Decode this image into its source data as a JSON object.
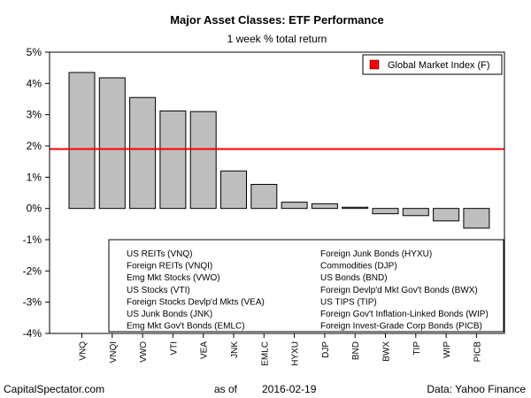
{
  "chart_data": {
    "type": "bar",
    "title": "Major Asset Classes: ETF Performance",
    "subtitle": "1 week % total return",
    "categories": [
      "VNQ",
      "VNQI",
      "VWO",
      "VTI",
      "VEA",
      "JNK",
      "EMLC",
      "HYXU",
      "DJP",
      "BND",
      "BWX",
      "TIP",
      "WIP",
      "PICB"
    ],
    "values": [
      4.35,
      4.18,
      3.55,
      3.12,
      3.1,
      1.2,
      0.77,
      0.2,
      0.15,
      0.04,
      -0.17,
      -0.23,
      -0.4,
      -0.63
    ],
    "ylim": [
      -4,
      5
    ],
    "yticks": [
      5,
      4,
      3,
      2,
      1,
      0,
      -1,
      -2,
      -3,
      -4
    ],
    "ytick_labels": [
      "5%",
      "4%",
      "3%",
      "2%",
      "1%",
      "0%",
      "-1%",
      "-2%",
      "-3%",
      "-4%"
    ],
    "bar_color": "#bebebe",
    "reference_line": {
      "label": "Global Market Index (F)",
      "value": 1.9,
      "color": "#ff0000"
    },
    "legend": {
      "placement": "top-right",
      "entries": [
        "Global Market Index (F)"
      ]
    },
    "grid": false,
    "ticker_notes": {
      "left": [
        "US REITs (VNQ)",
        "Foreign REITs (VNQI)",
        "Emg Mkt Stocks (VWO)",
        "US Stocks (VTI)",
        "Foreign Stocks Devlp'd Mkts (VEA)",
        "US Junk Bonds (JNK)",
        "Emg Mkt Gov't Bonds (EMLC)"
      ],
      "right": [
        "Foreign Junk Bonds (HYXU)",
        "Commodities (DJP)",
        "US Bonds (BND)",
        "Foreign Devlp'd Mkt Gov't Bonds (BWX)",
        "US TIPS (TIP)",
        "Foreign Gov't Inflation-Linked Bonds (WIP)",
        "Foreign Invest-Grade Corp Bonds (PICB)"
      ]
    }
  },
  "footer": {
    "source_left": "CapitalSpectator.com",
    "as_of_label": "as of",
    "as_of_date": "2016-02-19",
    "data_source": "Data: Yahoo Finance"
  }
}
